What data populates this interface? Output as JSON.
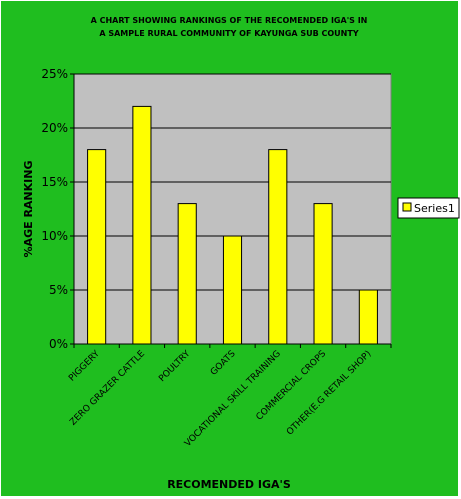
{
  "chart_data": {
    "type": "bar",
    "title": "A CHART SHOWING RANKINGS OF THE RECOMENDED IGA'S IN",
    "subtitle": "A SAMPLE RURAL COMMUNITY OF KAYUNGA SUB COUNTY",
    "xlabel": "RECOMENDED IGA'S",
    "ylabel": "%AGE RANKING",
    "categories": [
      "PIGGERY",
      "ZERO GRAZER CATTLE",
      "POULTRY",
      "GOATS",
      "VOCATIONAL SKILL TRAINING",
      "COMMERCIAL CROPS",
      "OTHER(E.G RETAIL SHOP)"
    ],
    "series": [
      {
        "name": "Series1",
        "values": [
          18,
          22,
          13,
          10,
          18,
          13,
          5
        ]
      }
    ],
    "ylim": [
      0,
      25
    ],
    "yticks": [
      0,
      5,
      10,
      15,
      20,
      25
    ],
    "ytick_labels": [
      "0%",
      "5%",
      "10%",
      "15%",
      "20%",
      "25%"
    ],
    "grid": true,
    "legend_position": "right",
    "colors": {
      "background": "#1fbe1f",
      "plot_area": "#c0c0c0",
      "bar_fill": "#ffff00",
      "bar_stroke": "#000000"
    }
  }
}
